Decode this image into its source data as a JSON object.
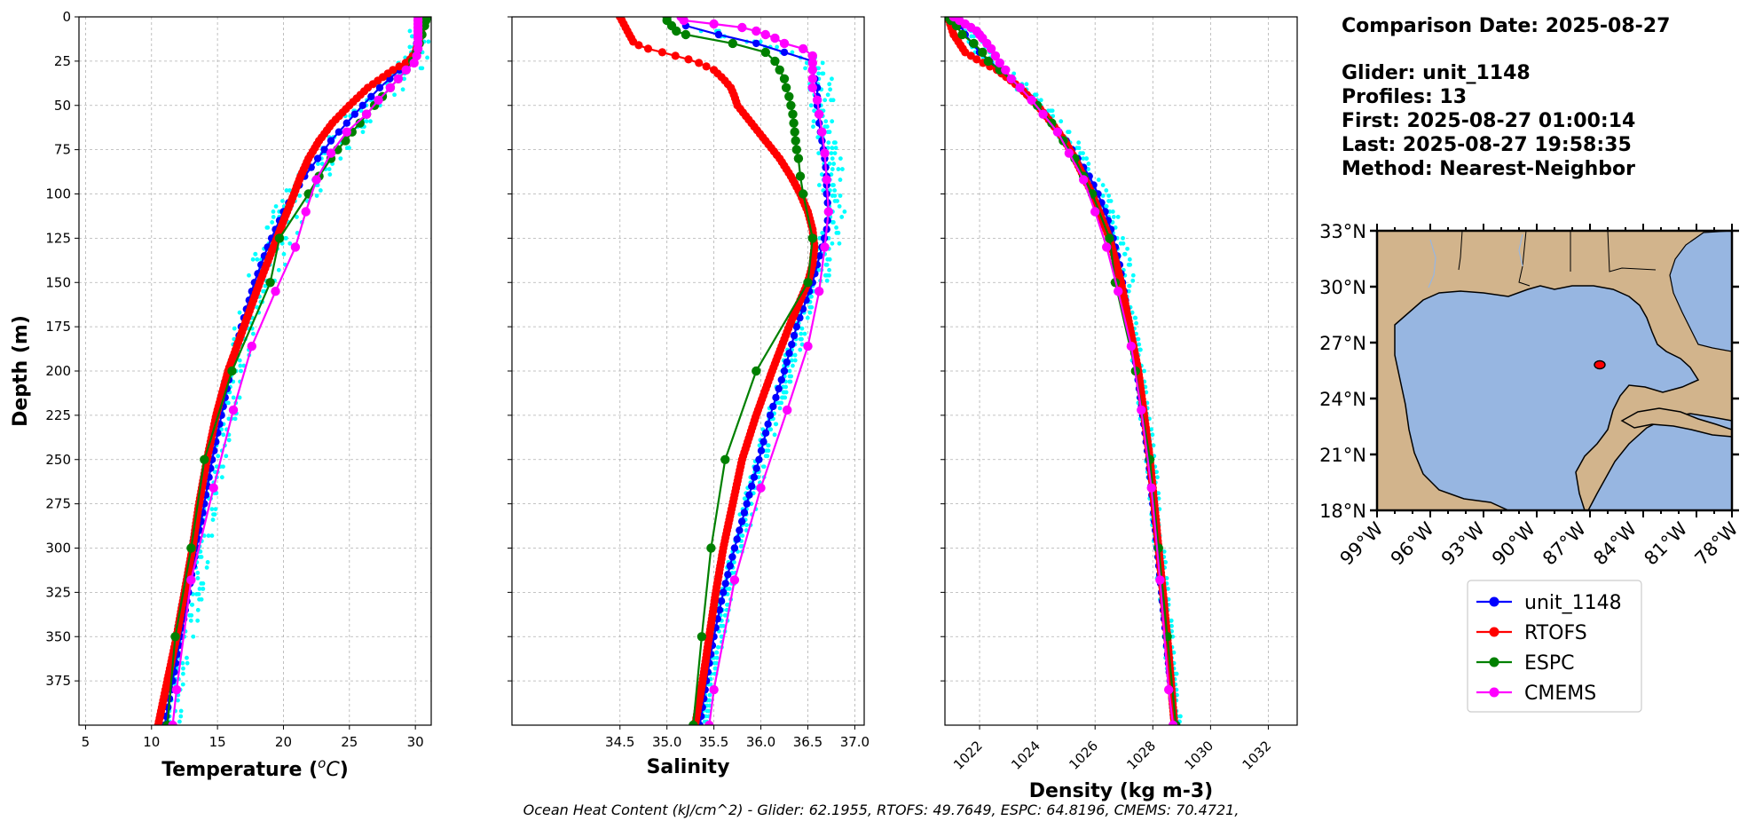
{
  "footer": "Ocean Heat Content (kJ/cm^2) - Glider: 62.1955,  RTOFS: 49.7649,  ESPC: 64.8196,  CMEMS: 70.4721,",
  "info": {
    "comparison": "Comparison Date: 2025-08-27",
    "glider": "Glider: unit_1148",
    "profiles": "Profiles: 13",
    "first": "First: 2025-08-27 01:00:14",
    "last": "Last: 2025-08-27 19:58:35",
    "method": "Method: Nearest-Neighbor"
  },
  "colors": {
    "glider": "#0000ff",
    "glider_raw": "#00ffff",
    "rtofs": "#ff0000",
    "espc": "#008000",
    "cmems": "#ff00ff",
    "land": "#d2b48c",
    "ocean": "#97b6e1"
  },
  "legend": [
    {
      "label": "unit_1148",
      "color": "#0000ff"
    },
    {
      "label": "RTOFS",
      "color": "#ff0000"
    },
    {
      "label": "ESPC",
      "color": "#008000"
    },
    {
      "label": "CMEMS",
      "color": "#ff00ff"
    }
  ],
  "map": {
    "lat_ticks": [
      "33°N",
      "30°N",
      "27°N",
      "24°N",
      "21°N",
      "18°N"
    ],
    "lon_ticks": [
      "99°W",
      "96°W",
      "93°W",
      "90°W",
      "87°W",
      "84°W",
      "81°W",
      "78°W"
    ],
    "lon_range": [
      -99,
      -78
    ],
    "lat_range": [
      18,
      33
    ],
    "glider_position": {
      "lon": -86.1,
      "lat": 25.95
    }
  },
  "chart_data": [
    {
      "type": "line",
      "xlabel": "Temperature (°C)",
      "ylabel": "Depth (m)",
      "xlim": [
        4.5,
        31.2
      ],
      "ylim": [
        400,
        0
      ],
      "xticks": [
        5,
        10,
        15,
        20,
        25,
        30
      ],
      "yticks": [
        0,
        25,
        50,
        75,
        100,
        125,
        150,
        175,
        200,
        225,
        250,
        275,
        300,
        325,
        350,
        375
      ],
      "grid": true,
      "series": [
        {
          "name": "unit_1148",
          "depth": [
            0,
            5,
            10,
            15,
            20,
            25,
            30,
            40,
            50,
            60,
            70,
            80,
            90,
            100,
            110,
            120,
            130,
            140,
            150,
            175,
            200,
            225,
            250,
            275,
            300,
            325,
            350,
            375,
            400
          ],
          "values": [
            30.2,
            30.2,
            30.2,
            30.1,
            30.0,
            29.6,
            28.8,
            27.3,
            26.0,
            24.8,
            23.6,
            22.6,
            21.6,
            20.8,
            20.0,
            19.4,
            18.8,
            18.3,
            17.8,
            16.8,
            16.0,
            15.3,
            14.6,
            14.0,
            13.4,
            12.8,
            12.2,
            11.6,
            11.0
          ]
        },
        {
          "name": "RTOFS",
          "depth": [
            0,
            10,
            20,
            25,
            30,
            40,
            50,
            60,
            70,
            80,
            90,
            100,
            125,
            150,
            175,
            200,
            225,
            250,
            275,
            300,
            325,
            350,
            375,
            400
          ],
          "values": [
            30.6,
            30.4,
            30.0,
            29.5,
            28.3,
            26.4,
            25.0,
            23.7,
            22.7,
            21.9,
            21.3,
            20.8,
            19.5,
            18.2,
            17.0,
            15.8,
            14.9,
            14.2,
            13.6,
            13.1,
            12.5,
            11.9,
            11.2,
            10.5
          ]
        },
        {
          "name": "ESPC",
          "depth": [
            0,
            2,
            5,
            10,
            15,
            20,
            25,
            30,
            35,
            40,
            45,
            50,
            55,
            60,
            65,
            70,
            75,
            80,
            90,
            100,
            125,
            150,
            200,
            250,
            300,
            350,
            400
          ],
          "values": [
            30.9,
            30.8,
            30.7,
            30.5,
            30.3,
            30.1,
            29.8,
            29.3,
            28.7,
            28.1,
            27.5,
            26.9,
            26.3,
            25.8,
            25.2,
            24.7,
            24.1,
            23.6,
            22.7,
            21.9,
            19.7,
            19.0,
            16.1,
            14.0,
            13.0,
            11.8,
            11.2
          ]
        },
        {
          "name": "CMEMS",
          "depth": [
            0,
            2,
            4,
            6,
            8,
            10,
            12,
            15,
            18,
            22,
            26,
            30,
            35,
            40,
            47,
            55,
            65,
            77,
            92,
            110,
            130,
            155,
            186,
            222,
            266,
            318,
            380,
            400
          ],
          "values": [
            30.2,
            30.2,
            30.2,
            30.2,
            30.2,
            30.2,
            30.2,
            30.2,
            30.2,
            30.1,
            29.9,
            29.3,
            28.7,
            28.1,
            27.2,
            26.3,
            24.8,
            23.6,
            22.5,
            21.7,
            20.9,
            19.4,
            17.6,
            16.2,
            14.7,
            13.0,
            11.9,
            11.6
          ]
        }
      ]
    },
    {
      "type": "line",
      "xlabel": "Salinity",
      "xlim": [
        33.35,
        37.1
      ],
      "ylim": [
        400,
        0
      ],
      "xticks": [
        34.5,
        35.0,
        35.5,
        36.0,
        36.5,
        37.0
      ],
      "grid": true,
      "series": [
        {
          "name": "unit_1148",
          "depth": [
            0,
            5,
            10,
            15,
            20,
            25,
            30,
            40,
            50,
            60,
            70,
            80,
            90,
            100,
            110,
            120,
            130,
            140,
            150,
            175,
            200,
            225,
            250,
            275,
            300,
            325,
            350,
            375,
            400
          ],
          "values": [
            35.15,
            35.2,
            35.55,
            35.95,
            36.25,
            36.55,
            36.55,
            36.6,
            36.6,
            36.62,
            36.65,
            36.68,
            36.7,
            36.7,
            36.72,
            36.7,
            36.65,
            36.6,
            36.55,
            36.38,
            36.25,
            36.1,
            35.98,
            35.85,
            35.72,
            35.6,
            35.5,
            35.42,
            35.35
          ]
        },
        {
          "name": "RTOFS",
          "depth": [
            0,
            5,
            10,
            12,
            15,
            18,
            20,
            25,
            30,
            35,
            40,
            45,
            50,
            60,
            70,
            80,
            90,
            100,
            110,
            120,
            130,
            140,
            150,
            175,
            200,
            225,
            250,
            275,
            300,
            325,
            350,
            375,
            400
          ],
          "values": [
            34.5,
            34.55,
            34.6,
            34.62,
            34.65,
            34.8,
            34.95,
            35.3,
            35.5,
            35.6,
            35.68,
            35.72,
            35.75,
            35.9,
            36.05,
            36.2,
            36.32,
            36.42,
            36.5,
            36.55,
            36.57,
            36.55,
            36.5,
            36.3,
            36.12,
            35.95,
            35.8,
            35.7,
            35.6,
            35.52,
            35.45,
            35.38,
            35.3
          ]
        },
        {
          "name": "ESPC",
          "depth": [
            0,
            2,
            5,
            8,
            10,
            15,
            20,
            25,
            30,
            35,
            40,
            45,
            50,
            55,
            60,
            65,
            70,
            75,
            80,
            90,
            100,
            125,
            150,
            200,
            250,
            300,
            350,
            400
          ],
          "values": [
            35.0,
            35.0,
            35.05,
            35.1,
            35.2,
            35.7,
            36.05,
            36.15,
            36.2,
            36.25,
            36.27,
            36.3,
            36.32,
            36.34,
            36.35,
            36.36,
            36.37,
            36.38,
            36.4,
            36.42,
            36.45,
            36.55,
            36.5,
            35.95,
            35.62,
            35.47,
            35.37,
            35.28
          ]
        },
        {
          "name": "CMEMS",
          "depth": [
            0,
            2,
            4,
            6,
            8,
            10,
            12,
            15,
            18,
            22,
            26,
            30,
            35,
            40,
            47,
            55,
            65,
            77,
            92,
            110,
            130,
            155,
            186,
            222,
            266,
            318,
            380,
            400
          ],
          "values": [
            35.15,
            35.18,
            35.5,
            35.8,
            35.95,
            36.05,
            36.15,
            36.25,
            36.45,
            36.55,
            36.55,
            36.55,
            36.55,
            36.55,
            36.6,
            36.62,
            36.65,
            36.68,
            36.7,
            36.72,
            36.68,
            36.62,
            36.5,
            36.28,
            36.0,
            35.72,
            35.5,
            35.45
          ]
        }
      ]
    },
    {
      "type": "line",
      "xlabel": "Density (kg m-3)",
      "xlim": [
        1020.8,
        1033.0
      ],
      "ylim": [
        400,
        0
      ],
      "xticks": [
        1022,
        1024,
        1026,
        1028,
        1030,
        1032
      ],
      "grid": true,
      "series": [
        {
          "name": "unit_1148",
          "depth": [
            0,
            10,
            20,
            30,
            40,
            50,
            60,
            70,
            80,
            90,
            100,
            110,
            120,
            130,
            140,
            150,
            175,
            200,
            225,
            250,
            275,
            300,
            325,
            350,
            375,
            400
          ],
          "values": [
            1021.2,
            1021.5,
            1022.0,
            1022.7,
            1023.4,
            1024.0,
            1024.5,
            1025.0,
            1025.4,
            1025.8,
            1026.1,
            1026.35,
            1026.55,
            1026.7,
            1026.85,
            1026.95,
            1027.2,
            1027.45,
            1027.65,
            1027.85,
            1028.0,
            1028.15,
            1028.3,
            1028.45,
            1028.6,
            1028.75
          ]
        },
        {
          "name": "RTOFS",
          "depth": [
            0,
            10,
            20,
            25,
            30,
            40,
            50,
            60,
            70,
            80,
            90,
            100,
            125,
            150,
            200,
            250,
            300,
            350,
            400
          ],
          "values": [
            1020.9,
            1021.1,
            1021.5,
            1022.0,
            1022.6,
            1023.4,
            1024.0,
            1024.5,
            1024.95,
            1025.3,
            1025.6,
            1025.9,
            1026.5,
            1026.9,
            1027.5,
            1027.9,
            1028.2,
            1028.5,
            1028.75
          ]
        },
        {
          "name": "ESPC",
          "depth": [
            0,
            2,
            5,
            10,
            15,
            20,
            25,
            30,
            40,
            50,
            60,
            70,
            80,
            90,
            100,
            125,
            150,
            200,
            250,
            300,
            350,
            400
          ],
          "values": [
            1020.9,
            1021.0,
            1021.2,
            1021.4,
            1021.8,
            1022.1,
            1022.3,
            1022.7,
            1023.4,
            1024.0,
            1024.5,
            1024.9,
            1025.3,
            1025.6,
            1025.9,
            1026.5,
            1026.7,
            1027.4,
            1027.9,
            1028.2,
            1028.5,
            1028.8
          ]
        },
        {
          "name": "CMEMS",
          "depth": [
            0,
            2,
            4,
            6,
            8,
            10,
            12,
            15,
            18,
            22,
            26,
            30,
            35,
            40,
            47,
            55,
            65,
            77,
            92,
            110,
            130,
            155,
            186,
            222,
            266,
            318,
            380,
            400
          ],
          "values": [
            1021.1,
            1021.3,
            1021.5,
            1021.7,
            1021.9,
            1022.0,
            1022.1,
            1022.25,
            1022.4,
            1022.55,
            1022.7,
            1022.9,
            1023.1,
            1023.4,
            1023.8,
            1024.2,
            1024.7,
            1025.1,
            1025.6,
            1026.0,
            1026.4,
            1026.8,
            1027.25,
            1027.6,
            1027.95,
            1028.25,
            1028.55,
            1028.7
          ]
        }
      ]
    }
  ]
}
